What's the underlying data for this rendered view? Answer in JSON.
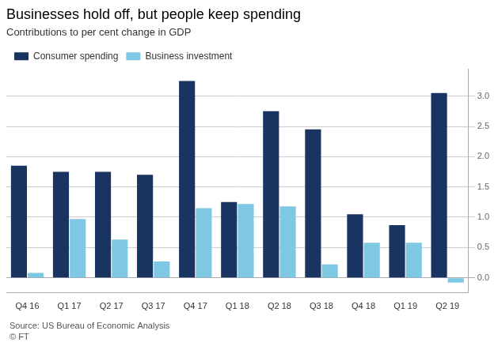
{
  "chart_data": {
    "type": "bar",
    "title": "Businesses hold off, but people keep spending",
    "subtitle": "Contributions to per cent change in GDP",
    "categories": [
      "Q4 16",
      "Q1 17",
      "Q2 17",
      "Q3 17",
      "Q4 17",
      "Q1 18",
      "Q2 18",
      "Q3 18",
      "Q4 18",
      "Q1 19",
      "Q2 19"
    ],
    "series": [
      {
        "name": "Consumer spending",
        "color": "#1a3461",
        "values": [
          1.85,
          1.75,
          1.75,
          1.7,
          3.25,
          1.25,
          2.75,
          2.45,
          1.05,
          0.87,
          3.05
        ]
      },
      {
        "name": "Business investment",
        "color": "#7ec8e3",
        "values": [
          0.08,
          0.97,
          0.63,
          0.27,
          1.15,
          1.22,
          1.18,
          0.22,
          0.58,
          0.58,
          -0.08
        ]
      }
    ],
    "ylim": [
      -0.25,
      3.45
    ],
    "yticks": [
      {
        "value": 0,
        "label": "0.0"
      },
      0.5,
      {
        "value": 1.0,
        "label": "1.0"
      },
      1.5,
      {
        "value": 2.0,
        "label": "2.0"
      },
      2.5,
      {
        "value": 3.0,
        "label": "3.0"
      }
    ],
    "grid": true,
    "annotations": [
      "Source: US Bureau of Economic Analysis",
      "© FT"
    ]
  }
}
